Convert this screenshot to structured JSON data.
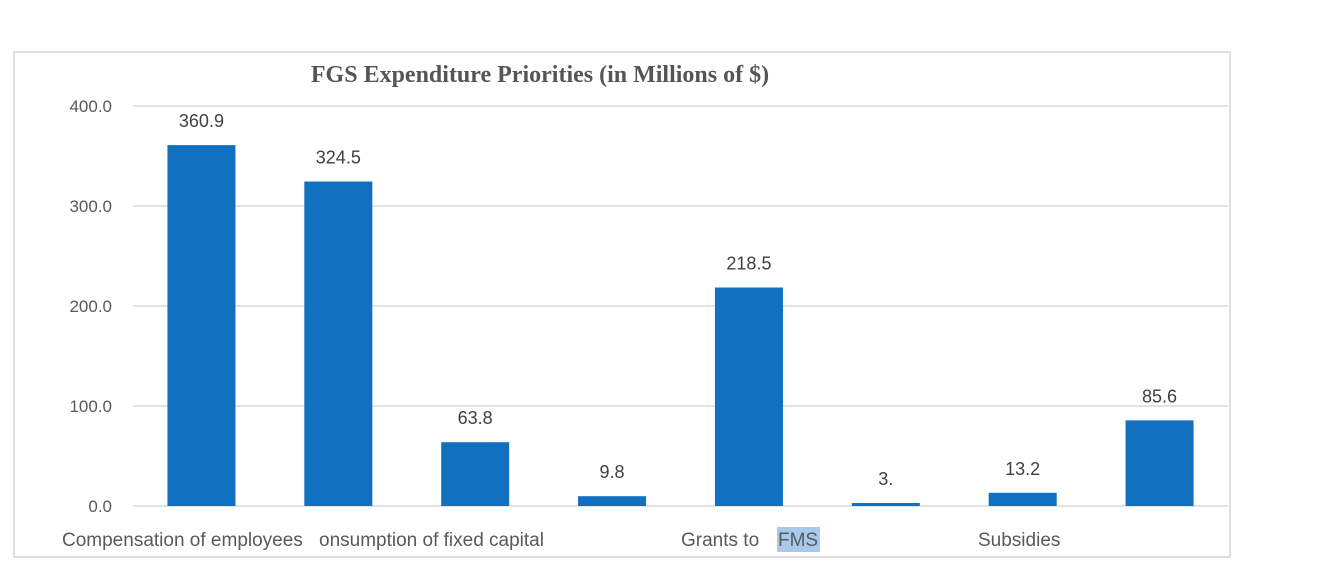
{
  "chart_data": {
    "type": "bar",
    "title": "FGS Expenditure Priorities (in Millions of $)",
    "xlabel": "",
    "ylabel": "",
    "ylim": [
      0,
      400
    ],
    "y_ticks": [
      "0.0",
      "100.0",
      "200.0",
      "300.0",
      "400.0"
    ],
    "categories": [
      "Compensation of employees",
      "Consumption of fixed capital",
      "",
      "",
      "Grants to FMS",
      "",
      "Subsidies",
      ""
    ],
    "visible_x_labels": [
      "Compensation of employees",
      "onsumption of fixed capital",
      "Grants to ",
      "FMS",
      "Subsidies"
    ],
    "values": [
      360.9,
      324.5,
      63.8,
      9.8,
      218.5,
      3.0,
      13.2,
      85.6
    ],
    "data_labels": [
      "360.9",
      "324.5",
      "63.8",
      "9.8",
      "218.5",
      "3.",
      "13.2",
      "85.6"
    ],
    "grid": true,
    "legend": "none",
    "bar_color": "#1170c0"
  }
}
